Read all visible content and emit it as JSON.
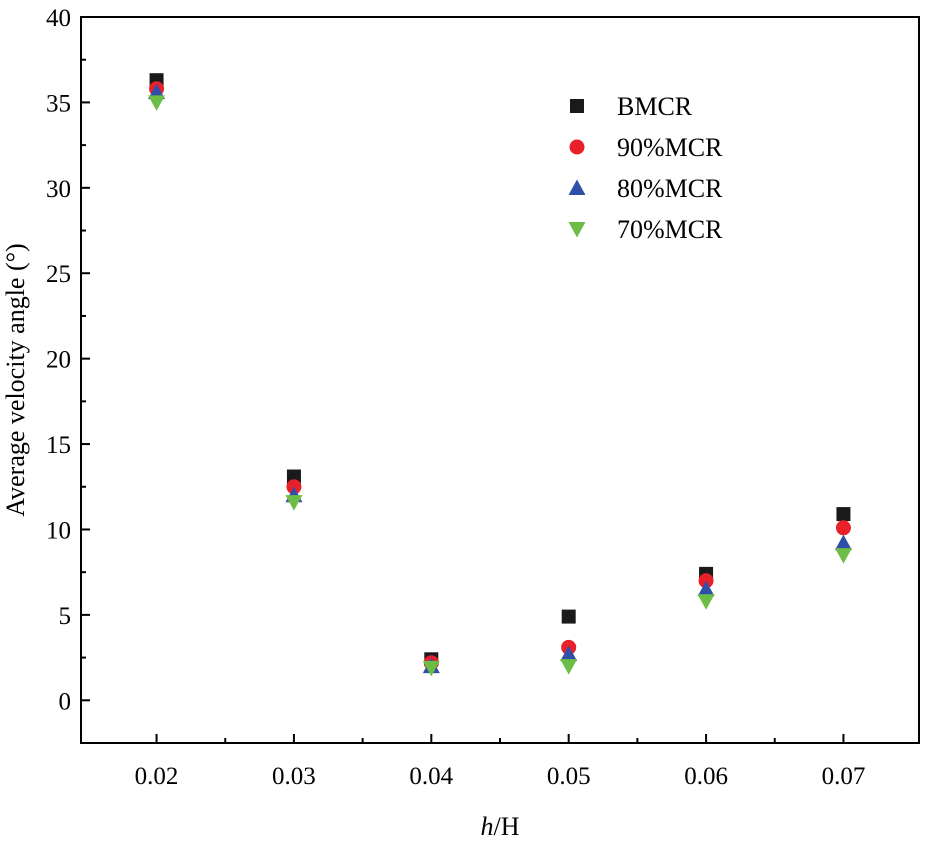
{
  "chart_data": {
    "type": "scatter",
    "xlabel_italic": "h",
    "xlabel_rest": "/H",
    "ylabel": "Average velocity angle (°)",
    "xlim": [
      0.0145,
      0.0755
    ],
    "ylim": [
      -2.5,
      40
    ],
    "x": [
      0.02,
      0.03,
      0.04,
      0.05,
      0.06,
      0.07
    ],
    "x_ticks": [
      "0.02",
      "0.03",
      "0.04",
      "0.05",
      "0.06",
      "0.07"
    ],
    "y_ticks": [
      "0",
      "5",
      "10",
      "15",
      "20",
      "25",
      "30",
      "35",
      "40"
    ],
    "legend_position": "top-right",
    "series": [
      {
        "name": "BMCR",
        "marker": "square",
        "color": "#1a1a1a",
        "values": [
          36.3,
          13.1,
          2.4,
          4.9,
          7.4,
          10.9
        ]
      },
      {
        "name": "90%MCR",
        "marker": "circle",
        "color": "#e8202a",
        "values": [
          35.8,
          12.5,
          2.2,
          3.1,
          7.0,
          10.1
        ]
      },
      {
        "name": "80%MCR",
        "marker": "triangle-up",
        "color": "#2f4fa8",
        "values": [
          35.6,
          12.0,
          2.0,
          2.7,
          6.5,
          9.2
        ]
      },
      {
        "name": "70%MCR",
        "marker": "triangle-down",
        "color": "#6cbd45",
        "values": [
          35.0,
          11.6,
          1.9,
          2.0,
          5.8,
          8.5
        ]
      }
    ]
  }
}
